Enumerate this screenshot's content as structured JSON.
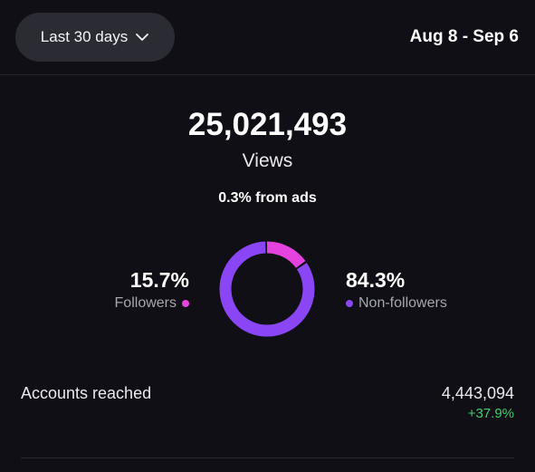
{
  "header": {
    "range_label": "Last 30 days",
    "range_icon": "chevron-down-icon",
    "date_range": "Aug 8 - Sep 6"
  },
  "summary": {
    "total": "25,021,493",
    "total_label": "Views",
    "ads_note": "0.3% from ads"
  },
  "breakdown": {
    "followers": {
      "percent_text": "15.7%",
      "percent": 15.7,
      "label": "Followers",
      "color": "#e543df"
    },
    "non_followers": {
      "percent_text": "84.3%",
      "percent": 84.3,
      "label": "Non-followers",
      "color": "#8a46f5"
    }
  },
  "reach": {
    "label": "Accounts reached",
    "value": "4,443,094",
    "change": "+37.9%",
    "change_color": "#3fcf6e"
  },
  "colors": {
    "background": "#0f0f15",
    "pill": "#2a2b33"
  }
}
